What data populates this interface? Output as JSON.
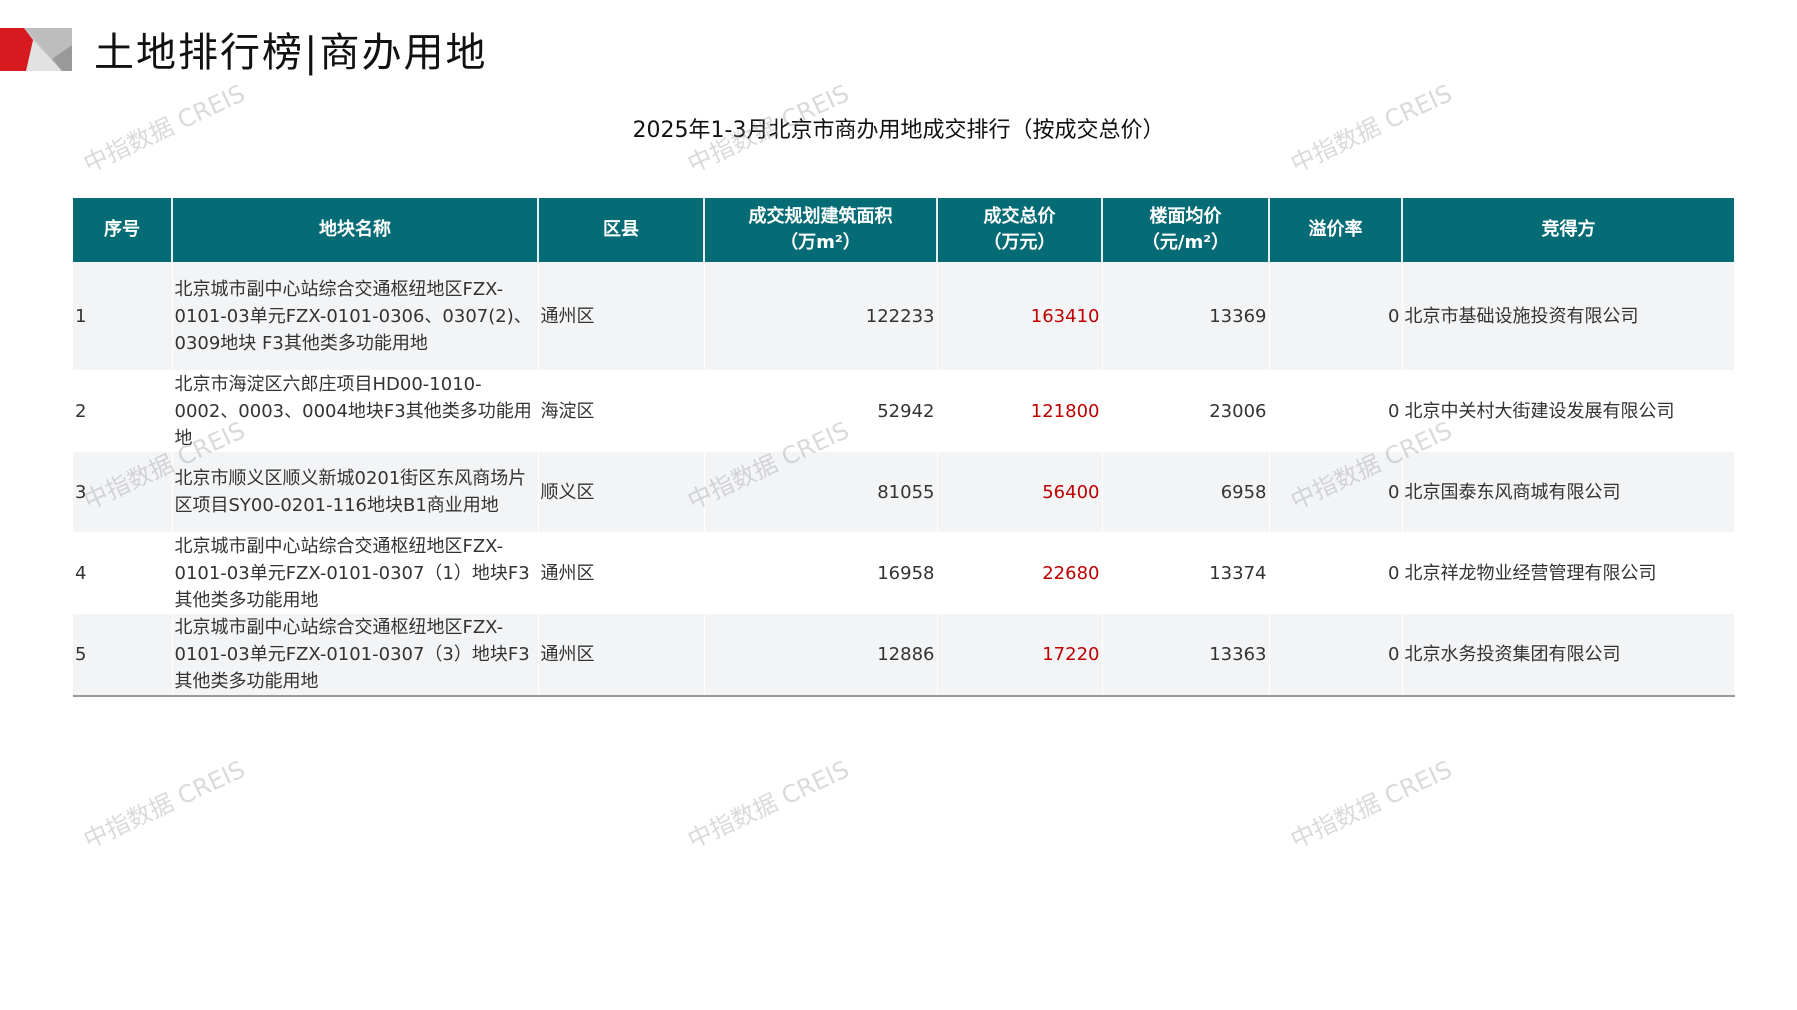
{
  "header": {
    "title": "土地排行榜|商办用地",
    "accent": "#d71920",
    "table_header_bg": "#056b75",
    "highlight_color": "#c00000"
  },
  "table": {
    "title": "2025年1-3月北京市商办用地成交排行（按成交总价）",
    "columns": [
      "序号",
      "地块名称",
      "区县",
      "成交规划建筑面积（万m²）",
      "成交总价（万元）",
      "楼面均价（元/m²）",
      "溢价率",
      "竞得方"
    ],
    "column_lines": [
      [
        "序号"
      ],
      [
        "地块名称"
      ],
      [
        "区县"
      ],
      [
        "成交规划建筑面积",
        "（万m²）"
      ],
      [
        "成交总价",
        "（万元）"
      ],
      [
        "楼面均价",
        "（元/m²）"
      ],
      [
        "溢价率"
      ],
      [
        "竞得方"
      ]
    ],
    "rows": [
      {
        "rank": "1",
        "name": "北京城市副中心站综合交通枢纽地区FZX-0101-03单元FZX-0101-0306、0307(2)、0309地块 F3其他类多功能用地",
        "district": "通州区",
        "area": "122233",
        "total": "163410",
        "unit_price": "13369",
        "premium": "0",
        "winner": "北京市基础设施投资有限公司"
      },
      {
        "rank": "2",
        "name": "北京市海淀区六郎庄项目HD00-1010-0002、0003、0004地块F3其他类多功能用地",
        "district": "海淀区",
        "area": "52942",
        "total": "121800",
        "unit_price": "23006",
        "premium": "0",
        "winner": "北京中关村大街建设发展有限公司"
      },
      {
        "rank": "3",
        "name": "北京市顺义区顺义新城0201街区东风商场片区项目SY00-0201-116地块B1商业用地",
        "district": "顺义区",
        "area": "81055",
        "total": "56400",
        "unit_price": "6958",
        "premium": "0",
        "winner": "北京国泰东风商城有限公司"
      },
      {
        "rank": "4",
        "name": "北京城市副中心站综合交通枢纽地区FZX-0101-03单元FZX-0101-0307（1）地块F3其他类多功能用地",
        "district": "通州区",
        "area": "16958",
        "total": "22680",
        "unit_price": "13374",
        "premium": "0",
        "winner": "北京祥龙物业经营管理有限公司"
      },
      {
        "rank": "5",
        "name": "北京城市副中心站综合交通枢纽地区FZX-0101-03单元FZX-0101-0307（3）地块F3其他类多功能用地",
        "district": "通州区",
        "area": "12886",
        "total": "17220",
        "unit_price": "13363",
        "premium": "0",
        "winner": "北京水务投资集团有限公司"
      }
    ]
  },
  "watermark": "中指数据 CREIS"
}
